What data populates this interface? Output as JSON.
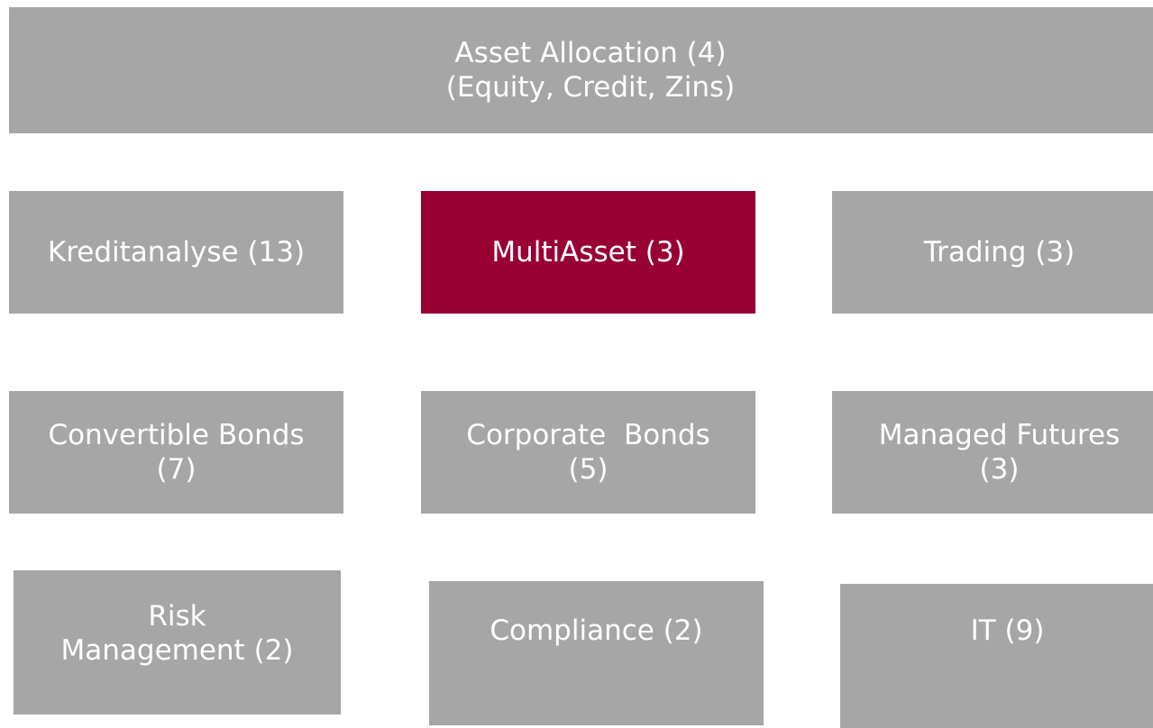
{
  "nodes": [
    {
      "lines": [
        "Asset Allocation (4)",
        "(Equity, Credit, Zins)"
      ]
    },
    {
      "lines": [
        "Kreditanalyse (13)"
      ]
    },
    {
      "lines": [
        "MultiAsset (3)"
      ]
    },
    {
      "lines": [
        "Trading (3)"
      ]
    },
    {
      "lines": [
        "Convertible Bonds",
        "(7)"
      ]
    },
    {
      "lines": [
        "Corporate  Bonds",
        "(5)"
      ]
    },
    {
      "lines": [
        "Managed Futures",
        "(3)"
      ]
    },
    {
      "lines": [
        "Risk",
        "Management (2)"
      ]
    },
    {
      "lines": [
        "Compliance (2)"
      ]
    },
    {
      "lines": [
        "IT (9)"
      ]
    }
  ]
}
